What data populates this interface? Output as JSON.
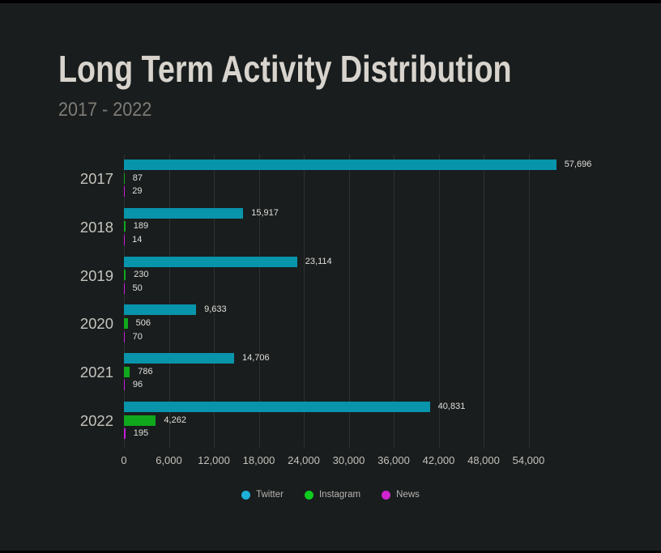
{
  "page": {
    "background_color": "#191d1e",
    "frame_color": "#000000"
  },
  "header": {
    "title": "Long Term Activity Distribution",
    "subtitle": "2017 - 2022"
  },
  "chart_data": {
    "type": "bar",
    "orientation": "horizontal",
    "title": "Long Term Activity Distribution",
    "subtitle": "2017 - 2022",
    "grid": true,
    "legend_position": "bottom",
    "categories": [
      "2017",
      "2018",
      "2019",
      "2020",
      "2021",
      "2022"
    ],
    "series": [
      {
        "name": "Twitter",
        "bar_color": "#0894ab",
        "legend_color": "#1cb0d8",
        "values": [
          57696,
          15917,
          23114,
          9633,
          14706,
          40831
        ],
        "value_labels": [
          "57,696",
          "15,917",
          "23,114",
          "9,633",
          "14,706",
          "40,831"
        ]
      },
      {
        "name": "Instagram",
        "bar_color": "#10a81d",
        "legend_color": "#0ecb1e",
        "values": [
          87,
          189,
          230,
          506,
          786,
          4262
        ],
        "value_labels": [
          "87",
          "189",
          "230",
          "506",
          "786",
          "4,262"
        ]
      },
      {
        "name": "News",
        "bar_color": "#c21fd6",
        "legend_color": "#d024d0",
        "values": [
          29,
          14,
          50,
          70,
          96,
          195
        ],
        "value_labels": [
          "29",
          "14",
          "50",
          "70",
          "96",
          "195"
        ]
      }
    ],
    "x_axis": {
      "min": 0,
      "max": 54000,
      "tick_step": 6000,
      "ticks": [
        0,
        6000,
        12000,
        18000,
        24000,
        30000,
        36000,
        42000,
        48000,
        54000
      ],
      "tick_labels": [
        "0",
        "6,000",
        "12,000",
        "18,000",
        "24,000",
        "30,000",
        "36,000",
        "42,000",
        "48,000",
        "54,000"
      ]
    },
    "text_colors": {
      "title": "#d8d4cd",
      "subtitle": "#7e7b75",
      "year_labels": "#c6c3bd",
      "value_labels": "#e0ded9",
      "tick_labels": "#c4c1bb",
      "legend_labels": "#b7b4b0",
      "gridline": "#2c3132"
    }
  }
}
